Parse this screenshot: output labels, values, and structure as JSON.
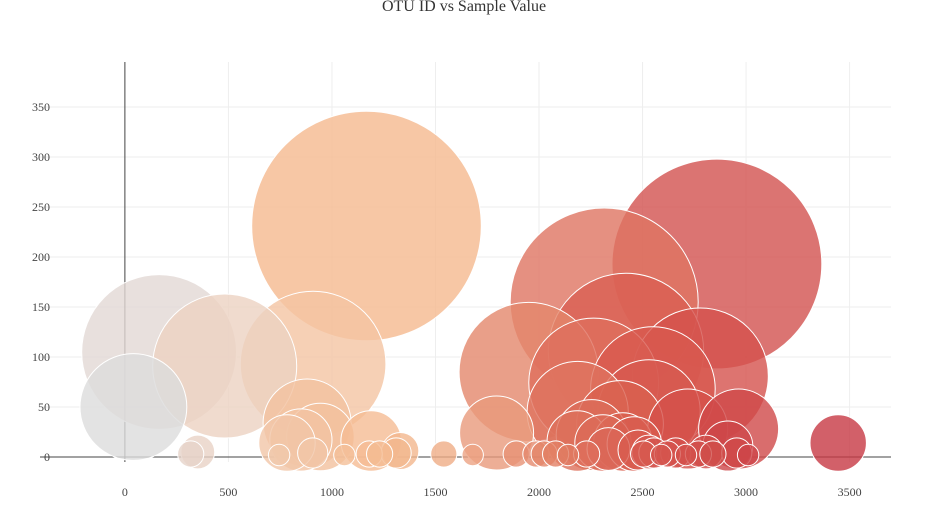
{
  "chart_data": {
    "type": "scatter",
    "title": "OTU ID vs Sample Value",
    "xlabel": "",
    "ylabel": "",
    "xlim": [
      -410,
      3700
    ],
    "ylim": [
      -5,
      395
    ],
    "x_ticks": [
      0,
      500,
      1000,
      1500,
      2000,
      2500,
      3000,
      3500
    ],
    "y_ticks": [
      0,
      50,
      100,
      150,
      200,
      250,
      300,
      350
    ],
    "grid": true,
    "legend": "none",
    "marker_sizing": "bubble area proportional to sample value",
    "colorscale": "by OTU ID: light gray (low) to peach to red (high)",
    "points": [
      {
        "x": 41,
        "y": 50,
        "color": "#dcdcdc"
      },
      {
        "x": 165,
        "y": 105,
        "color": "#e2d8d4"
      },
      {
        "x": 482,
        "y": 91,
        "color": "#ecd2c2"
      },
      {
        "x": 909,
        "y": 93,
        "color": "#f4c4a2"
      },
      {
        "x": 1167,
        "y": 231,
        "color": "#f5b98e"
      },
      {
        "x": 1950,
        "y": 85,
        "color": "#e4876b"
      },
      {
        "x": 2315,
        "y": 155,
        "color": "#de7462"
      },
      {
        "x": 2264,
        "y": 74,
        "color": "#de6e5c"
      },
      {
        "x": 2420,
        "y": 106,
        "color": "#d95f52"
      },
      {
        "x": 2550,
        "y": 68,
        "color": "#d8594f"
      },
      {
        "x": 2779,
        "y": 81,
        "color": "#d5514c"
      },
      {
        "x": 2859,
        "y": 193,
        "color": "#d2514f"
      },
      {
        "x": 2187,
        "y": 45,
        "color": "#df735f"
      },
      {
        "x": 2531,
        "y": 46,
        "color": "#d75a50"
      },
      {
        "x": 2391,
        "y": 33,
        "color": "#d9604f"
      },
      {
        "x": 2718,
        "y": 28,
        "color": "#d4504a"
      },
      {
        "x": 2964,
        "y": 28,
        "color": "#cf4848"
      },
      {
        "x": 880,
        "y": 34,
        "color": "#f3c2a0"
      },
      {
        "x": 944,
        "y": 20,
        "color": "#f3c09e"
      },
      {
        "x": 1795,
        "y": 24,
        "color": "#e99a7c"
      },
      {
        "x": 1189,
        "y": 16,
        "color": "#f5bc94"
      },
      {
        "x": 850,
        "y": 17,
        "color": "#f3c3a3"
      },
      {
        "x": 783,
        "y": 14,
        "color": "#f1c5a7"
      },
      {
        "x": 3445,
        "y": 14,
        "color": "#c73843"
      },
      {
        "x": 2254,
        "y": 22,
        "color": "#dc6d5a"
      },
      {
        "x": 2185,
        "y": 16,
        "color": "#dd705b"
      },
      {
        "x": 2309,
        "y": 14,
        "color": "#dc6a58"
      },
      {
        "x": 2405,
        "y": 15,
        "color": "#d9604f"
      },
      {
        "x": 2460,
        "y": 13,
        "color": "#d85c4f"
      },
      {
        "x": 2912,
        "y": 11,
        "color": "#cd4648"
      },
      {
        "x": 2335,
        "y": 8,
        "color": "#db6757"
      },
      {
        "x": 2478,
        "y": 7,
        "color": "#d85b4f"
      },
      {
        "x": 2530,
        "y": 5,
        "color": "#d65750"
      },
      {
        "x": 2555,
        "y": 4,
        "color": "#d5544e"
      },
      {
        "x": 2806,
        "y": 5,
        "color": "#d14e4b"
      },
      {
        "x": 2955,
        "y": 4,
        "color": "#cf4a49"
      },
      {
        "x": 2660,
        "y": 4,
        "color": "#d3514c"
      },
      {
        "x": 1330,
        "y": 6,
        "color": "#f3b68d"
      },
      {
        "x": 1310,
        "y": 4,
        "color": "#f3b88f"
      },
      {
        "x": 352,
        "y": 5,
        "color": "#e8d2c6"
      },
      {
        "x": 318,
        "y": 3,
        "color": "#e6d3c9"
      },
      {
        "x": 907,
        "y": 4,
        "color": "#f1c5a7"
      },
      {
        "x": 1180,
        "y": 3,
        "color": "#f5bc94"
      },
      {
        "x": 1230,
        "y": 3,
        "color": "#f4bb92"
      },
      {
        "x": 1540,
        "y": 3,
        "color": "#efac86"
      },
      {
        "x": 1680,
        "y": 2,
        "color": "#eca283"
      },
      {
        "x": 1890,
        "y": 3,
        "color": "#e79276"
      },
      {
        "x": 1985,
        "y": 3,
        "color": "#e5896e"
      },
      {
        "x": 2025,
        "y": 3,
        "color": "#e48669"
      },
      {
        "x": 2080,
        "y": 3,
        "color": "#e28064"
      },
      {
        "x": 2140,
        "y": 2,
        "color": "#e07a62"
      },
      {
        "x": 2230,
        "y": 3,
        "color": "#de6f5c"
      },
      {
        "x": 2505,
        "y": 3,
        "color": "#d75a50"
      },
      {
        "x": 2590,
        "y": 2,
        "color": "#d5554e"
      },
      {
        "x": 2620,
        "y": 3,
        "color": "#d4534d"
      },
      {
        "x": 2710,
        "y": 2,
        "color": "#d3504b"
      },
      {
        "x": 2770,
        "y": 3,
        "color": "#d24f4b"
      },
      {
        "x": 2840,
        "y": 3,
        "color": "#d04d4a"
      },
      {
        "x": 3010,
        "y": 2,
        "color": "#cd4548"
      },
      {
        "x": 1060,
        "y": 2,
        "color": "#f4bf99"
      },
      {
        "x": 745,
        "y": 2,
        "color": "#f0c8ab"
      }
    ]
  }
}
